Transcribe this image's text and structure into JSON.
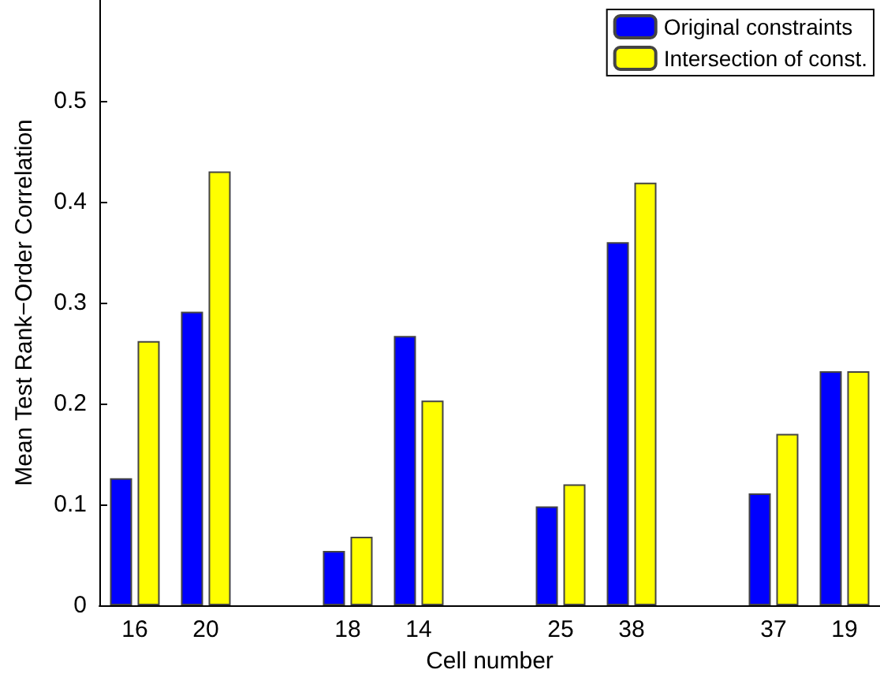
{
  "chart_data": {
    "type": "bar",
    "xlabel": "Cell number",
    "ylabel": "Mean Test Rank−Order Correlation",
    "categories": [
      "16",
      "20",
      null,
      "18",
      "14",
      null,
      "25",
      "38",
      null,
      "37",
      "19"
    ],
    "series": [
      {
        "name": "Original constraints",
        "color": "#0000ff",
        "values": [
          0.126,
          0.291,
          null,
          0.054,
          0.267,
          null,
          0.098,
          0.36,
          null,
          0.111,
          0.232
        ]
      },
      {
        "name": "Intersection of const.",
        "color": "#ffff00",
        "values": [
          0.262,
          0.43,
          null,
          0.068,
          0.203,
          null,
          0.12,
          0.419,
          null,
          0.17,
          0.232
        ]
      }
    ],
    "ylim": [
      0,
      0.6
    ],
    "yticks": [
      0,
      0.1,
      0.2,
      0.3,
      0.4,
      0.5
    ],
    "grid": false,
    "legend": "top right"
  }
}
